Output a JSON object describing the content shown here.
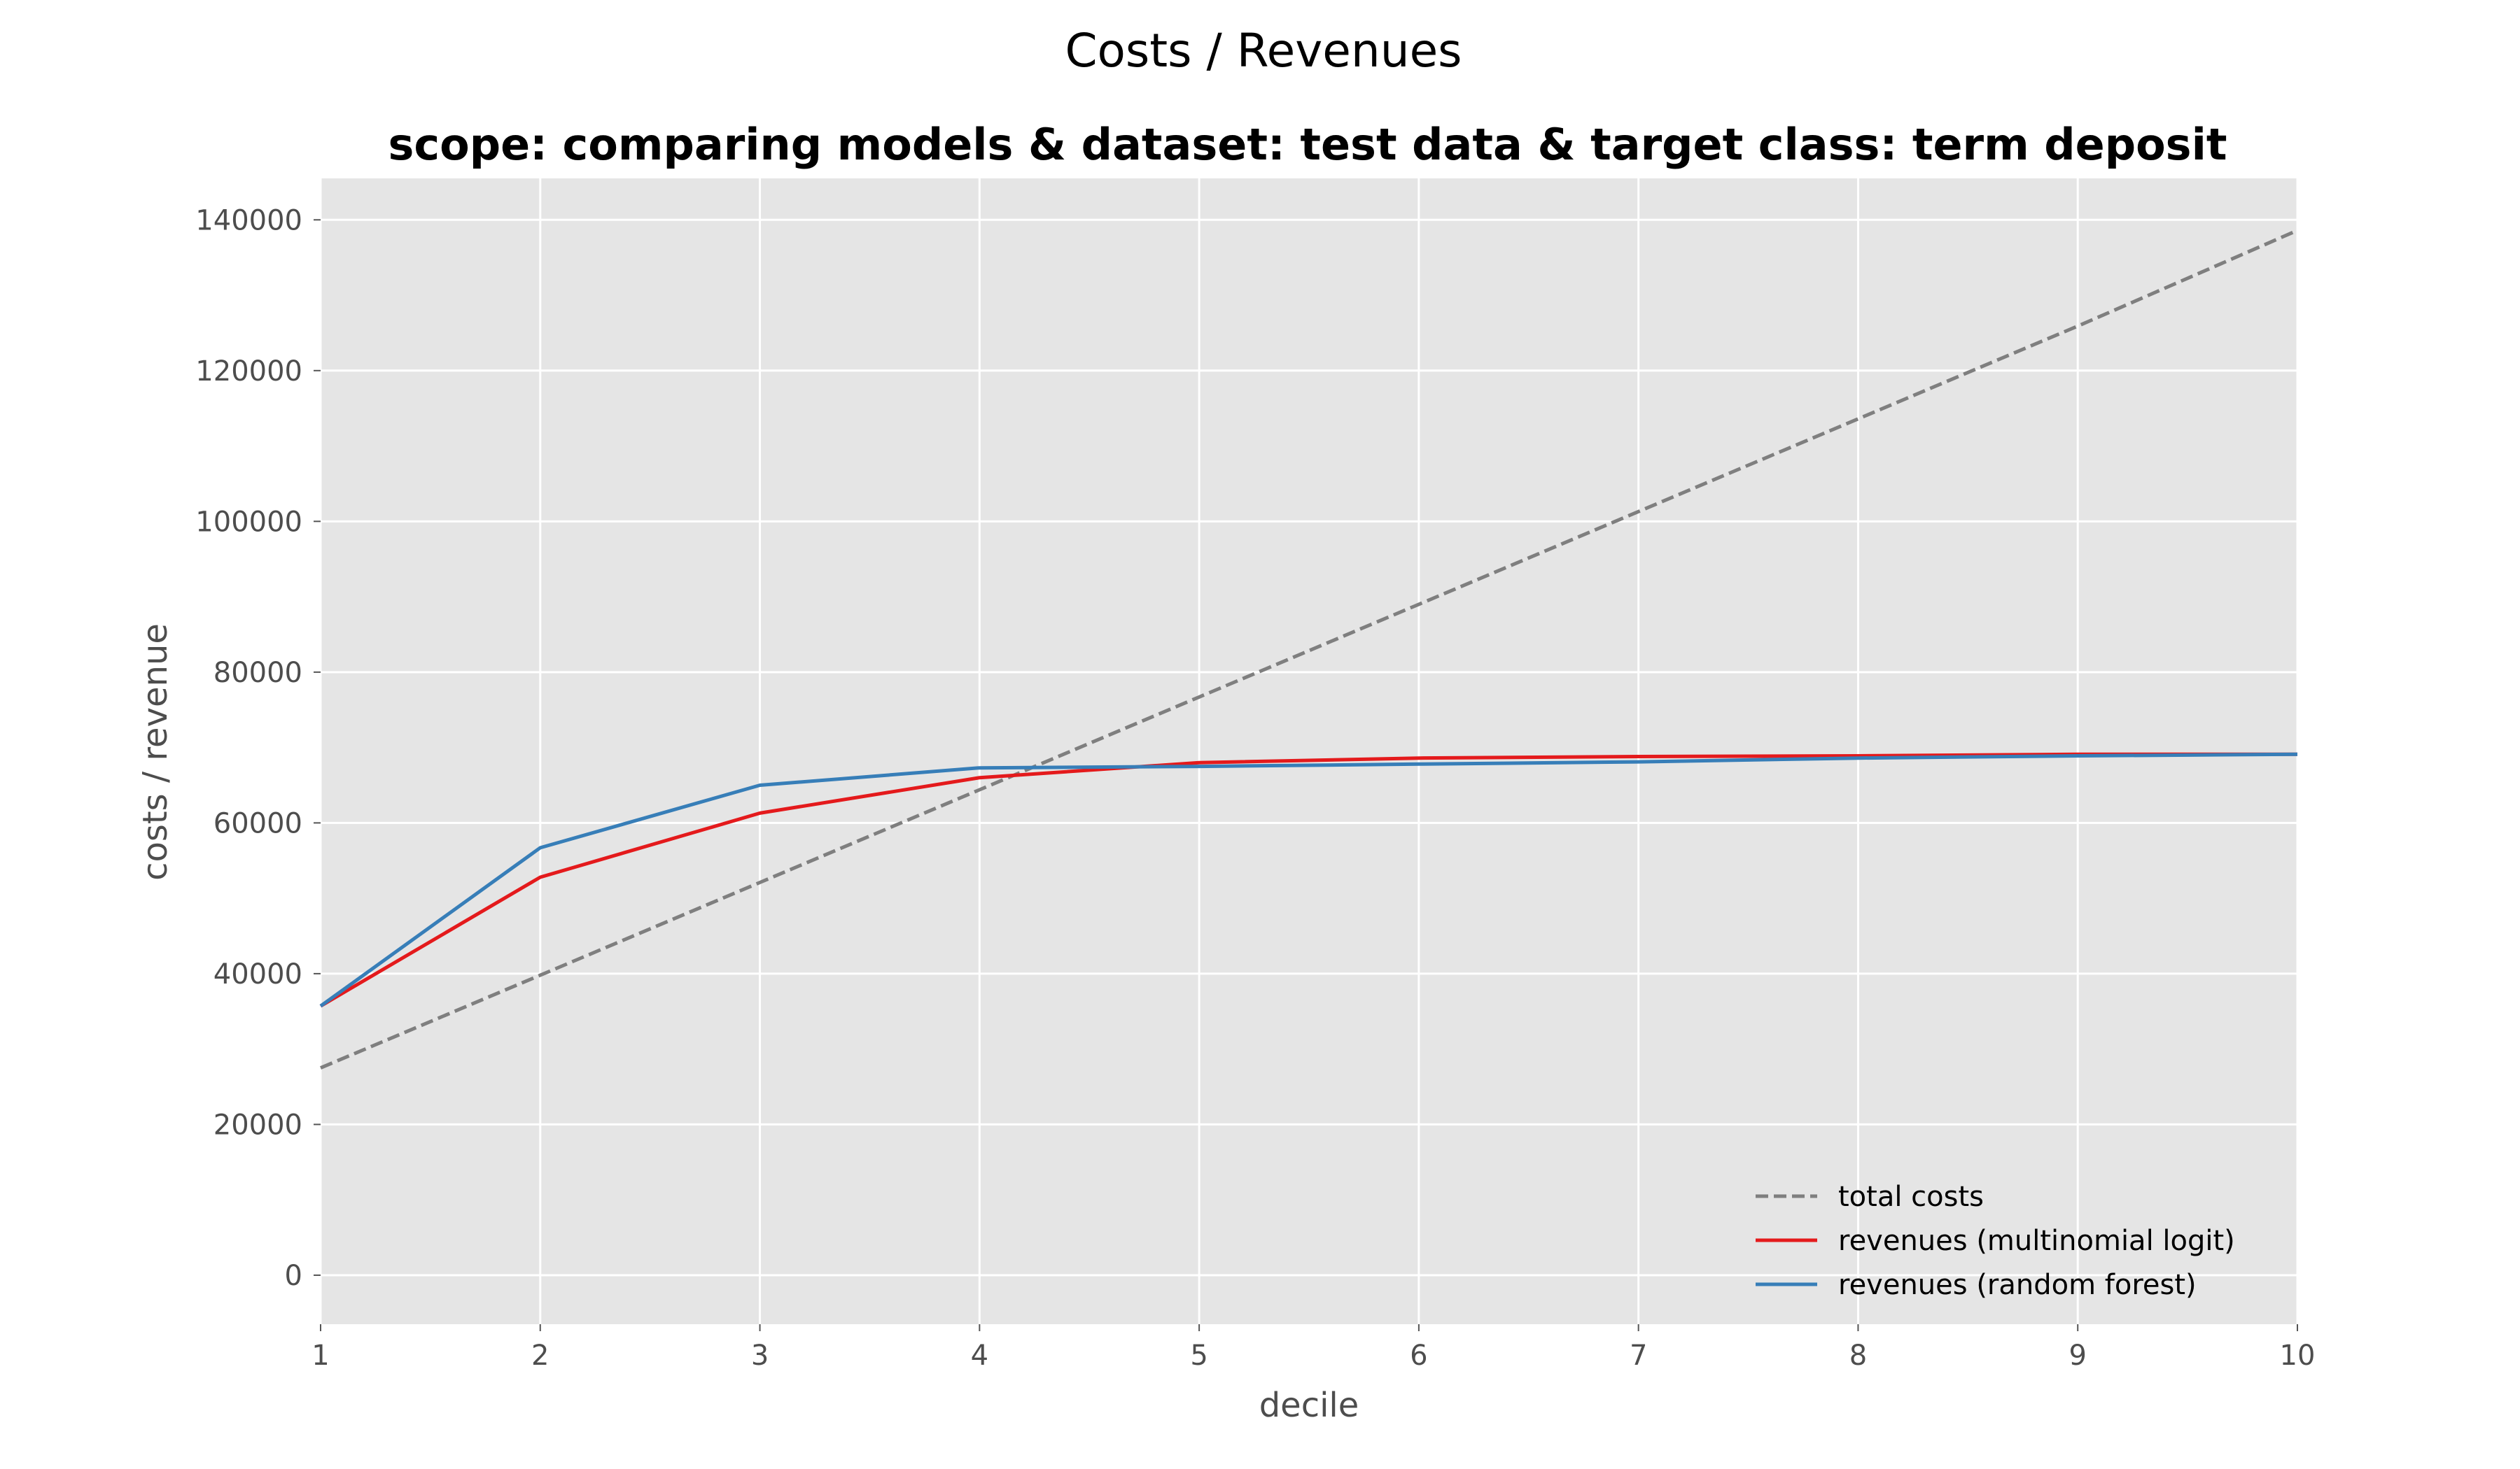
{
  "chart_data": {
    "type": "line",
    "suptitle": "Costs / Revenues",
    "title": "scope: comparing models & dataset: test data & target class: term deposit",
    "xlabel": "decile",
    "ylabel": "costs / revenue",
    "x": [
      1,
      2,
      3,
      4,
      5,
      6,
      7,
      8,
      9,
      10
    ],
    "xlim": [
      1,
      10
    ],
    "ylim": [
      -6500,
      145500
    ],
    "x_ticks": [
      "1",
      "2",
      "3",
      "4",
      "5",
      "6",
      "7",
      "8",
      "9",
      "10"
    ],
    "y_ticks": [
      "0",
      "20000",
      "40000",
      "60000",
      "80000",
      "100000",
      "120000",
      "140000"
    ],
    "y_tick_values": [
      0,
      20000,
      40000,
      60000,
      80000,
      100000,
      120000,
      140000
    ],
    "grid": true,
    "legend_position": "lower-right",
    "background": "#e5e5e5",
    "series": [
      {
        "name": "total costs",
        "color": "#7f7f7f",
        "style": "dashed",
        "values": [
          27500,
          39800,
          52100,
          64400,
          76700,
          89000,
          101300,
          113600,
          125900,
          138600
        ]
      },
      {
        "name": "revenues (multinomial logit)",
        "color": "#e41a1c",
        "style": "solid",
        "values": [
          35700,
          52800,
          61300,
          66000,
          68000,
          68600,
          68800,
          68900,
          69100,
          69100
        ]
      },
      {
        "name": "revenues (random forest)",
        "color": "#377eb8",
        "style": "solid",
        "values": [
          35700,
          56700,
          65000,
          67300,
          67500,
          67800,
          68100,
          68600,
          68900,
          69100
        ]
      }
    ]
  }
}
